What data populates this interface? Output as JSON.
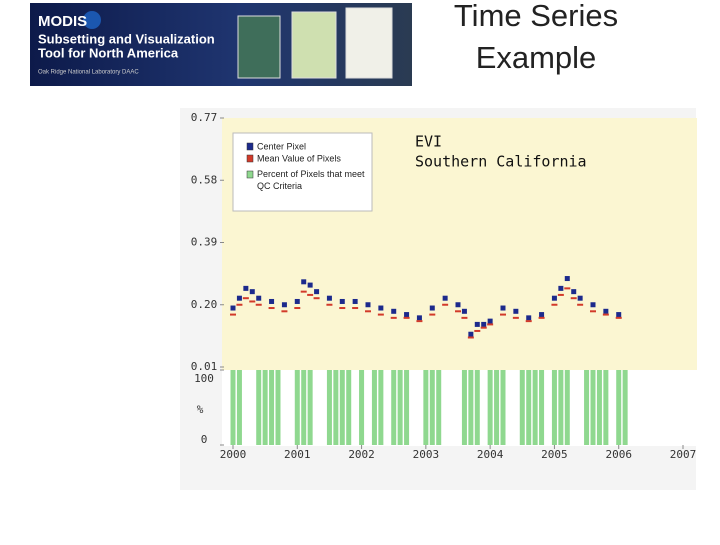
{
  "banner": {
    "name": "MODIS",
    "line1": "Subsetting and Visualization",
    "line2": "Tool for North America",
    "credit": "Oak Ridge National Laboratory DAAC"
  },
  "slide_title": [
    "Time Series",
    "Example"
  ],
  "chart_data": [
    {
      "type": "scatter",
      "annotation": [
        "EVI",
        "Southern California"
      ],
      "x": [
        2000.0,
        2000.1,
        2000.2,
        2000.3,
        2000.4,
        2000.6,
        2000.8,
        2001.0,
        2001.1,
        2001.2,
        2001.3,
        2001.5,
        2001.7,
        2001.9,
        2002.1,
        2002.3,
        2002.5,
        2002.7,
        2002.9,
        2003.1,
        2003.3,
        2003.5,
        2003.6,
        2003.7,
        2003.8,
        2003.9,
        2004.0,
        2004.2,
        2004.4,
        2004.6,
        2004.8,
        2005.0,
        2005.1,
        2005.2,
        2005.3,
        2005.4,
        2005.6,
        2005.8,
        2006.0
      ],
      "series": [
        {
          "name": "Center Pixel",
          "color": "#1c2a8c",
          "values": [
            0.19,
            0.22,
            0.25,
            0.24,
            0.22,
            0.21,
            0.2,
            0.21,
            0.27,
            0.26,
            0.24,
            0.22,
            0.21,
            0.21,
            0.2,
            0.19,
            0.18,
            0.17,
            0.16,
            0.19,
            0.22,
            0.2,
            0.18,
            0.11,
            0.14,
            0.14,
            0.15,
            0.19,
            0.18,
            0.16,
            0.17,
            0.22,
            0.25,
            0.28,
            0.24,
            0.22,
            0.2,
            0.18,
            0.17
          ]
        },
        {
          "name": "Mean Value of Pixels",
          "color": "#d23a2a",
          "values": [
            0.17,
            0.2,
            0.22,
            0.21,
            0.2,
            0.19,
            0.18,
            0.19,
            0.24,
            0.23,
            0.22,
            0.2,
            0.19,
            0.19,
            0.18,
            0.17,
            0.16,
            0.16,
            0.15,
            0.17,
            0.2,
            0.18,
            0.16,
            0.1,
            0.12,
            0.13,
            0.14,
            0.17,
            0.16,
            0.15,
            0.16,
            0.2,
            0.23,
            0.25,
            0.22,
            0.2,
            0.18,
            0.17,
            0.16
          ]
        }
      ],
      "xlim": [
        2000,
        2007
      ],
      "ylim": [
        0.01,
        0.77
      ],
      "yticks": [
        {
          "value": 0.01,
          "label": "0.01"
        },
        {
          "value": 0.2,
          "label": "0.20"
        },
        0.39,
        0.58,
        0.77
      ]
    },
    {
      "type": "bar",
      "name": "Percent of Pixels that meet QC Criteria",
      "color": "#8fd88f",
      "unit": "%",
      "x": [
        2000.0,
        2000.1,
        2000.4,
        2000.5,
        2000.6,
        2000.7,
        2001.0,
        2001.1,
        2001.2,
        2001.5,
        2001.6,
        2001.7,
        2001.8,
        2002.0,
        2002.2,
        2002.3,
        2002.5,
        2002.6,
        2002.7,
        2003.0,
        2003.1,
        2003.2,
        2003.6,
        2003.7,
        2003.8,
        2004.0,
        2004.1,
        2004.2,
        2004.5,
        2004.6,
        2004.7,
        2004.8,
        2005.0,
        2005.1,
        2005.2,
        2005.5,
        2005.6,
        2005.7,
        2005.8,
        2006.0,
        2006.1
      ],
      "values": [
        100,
        100,
        100,
        100,
        100,
        100,
        100,
        100,
        100,
        100,
        100,
        100,
        100,
        100,
        100,
        100,
        100,
        100,
        100,
        100,
        100,
        100,
        100,
        100,
        100,
        100,
        100,
        100,
        100,
        100,
        100,
        100,
        100,
        100,
        100,
        100,
        100,
        100,
        100,
        100,
        100
      ],
      "xlim": [
        2000,
        2007
      ],
      "ylim": [
        0,
        100
      ],
      "yticks": [
        0,
        100
      ],
      "xticks": [
        2000,
        2001,
        2002,
        2003,
        2004,
        2005,
        2006,
        2007
      ]
    }
  ]
}
